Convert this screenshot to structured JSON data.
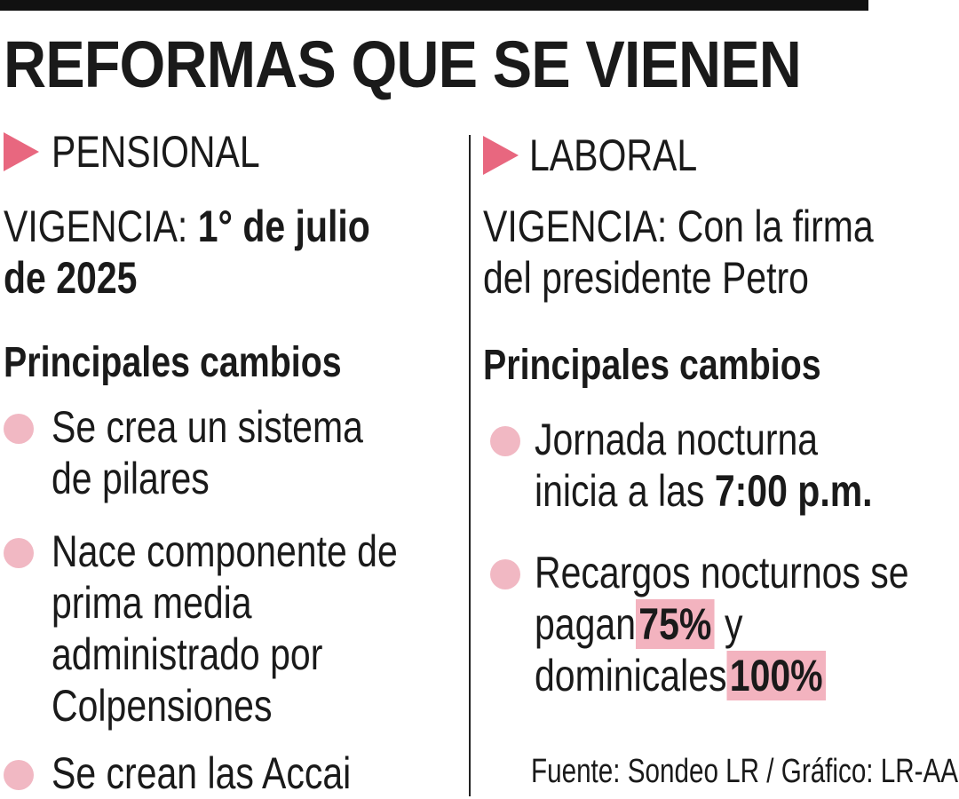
{
  "title": "REFORMAS QUE SE VIENEN",
  "pensional": {
    "heading": "PENSIONAL",
    "vigencia_label": "VIGENCIA:",
    "vigencia_value_1": "1° de julio",
    "vigencia_value_2": "de 2025",
    "cambios_heading": "Principales cambios",
    "items": [
      {
        "lines": [
          "Se crea un sistema",
          "de pilares"
        ]
      },
      {
        "lines": [
          "Nace componente de",
          "prima media",
          "administrado por",
          "Colpensiones"
        ]
      },
      {
        "lines": [
          "Se crean las Accai"
        ]
      }
    ]
  },
  "laboral": {
    "heading": "LABORAL",
    "vigencia_line_1": "VIGENCIA: Con la firma",
    "vigencia_line_2": "del presidente Petro",
    "cambios_heading": "Principales cambios",
    "item1": {
      "line1": "Jornada nocturna",
      "line2_prefix": "inicia a las ",
      "line2_bold": "7:00 p.m."
    },
    "item2": {
      "line1": "Recargos nocturnos se",
      "line2_prefix": "pagan",
      "line2_hl": "75%",
      "line2_suffix": " y",
      "line3_prefix": "dominicales",
      "line3_hl": "100%"
    }
  },
  "source": "Fuente: Sondeo LR / Gráfico: LR-AA",
  "colors": {
    "accent_triangle": "#e8677f",
    "bullet": "#f1b8c3",
    "highlight": "#f3b3bf"
  }
}
